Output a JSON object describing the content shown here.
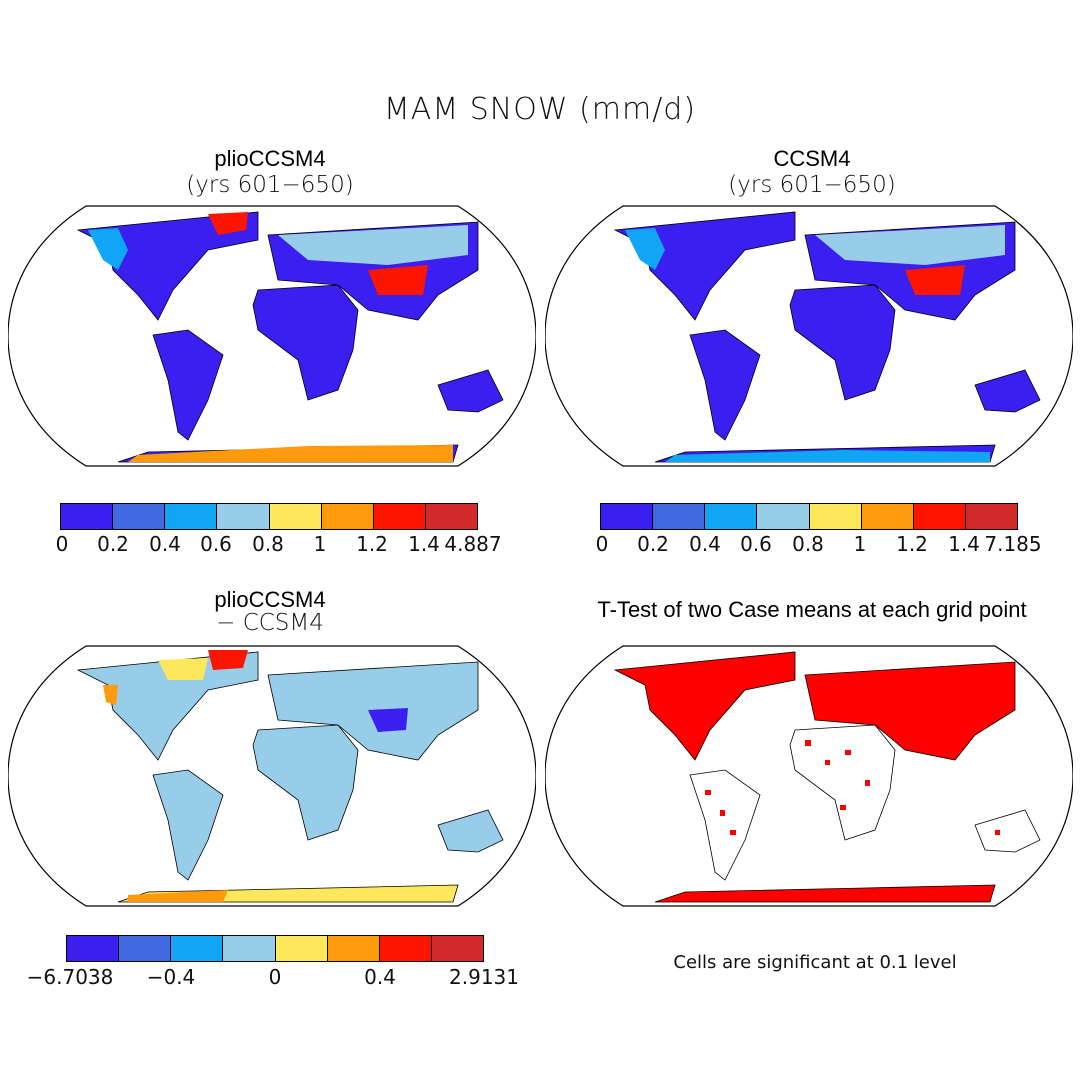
{
  "figure_title": "MAM SNOW (mm/d)",
  "colors": {
    "levels": [
      "#3a1ff0",
      "#4169e1",
      "#10a6f5",
      "#98cdea",
      "#fde85c",
      "#fe9a0c",
      "#fe1500",
      "#d22a2a"
    ],
    "ttest_fill": "#ff0000",
    "ocean": "#ffffff",
    "land_outline": "#000000"
  },
  "panels": [
    {
      "title": "plioCCSM4",
      "subtitle": "(yrs 601−650)",
      "colorbar_labels": [
        "0",
        "0.2",
        "0.4",
        "0.6",
        "0.8",
        "1",
        "1.2",
        "1.4",
        "4.887"
      ]
    },
    {
      "title": "CCSM4",
      "subtitle": "(yrs 601−650)",
      "colorbar_labels": [
        "0",
        "0.2",
        "0.4",
        "0.6",
        "0.8",
        "1",
        "1.2",
        "1.4",
        "7.185"
      ]
    },
    {
      "title": "plioCCSM4",
      "subtitle": "− CCSM4",
      "colorbar_labels": [
        "−6.7038",
        "−0.4",
        "0",
        "0.4",
        "2.9131"
      ]
    },
    {
      "title": "T-Test of two Case means at each grid point",
      "note": "Cells are significant at 0.1 level"
    }
  ],
  "map_data": {
    "projection": "Robinson",
    "variable": "MAM SNOW",
    "units": "mm/d",
    "difference_ticks": [
      "−6.7038",
      "−0.4",
      "0",
      "0.4",
      "2.9131"
    ],
    "significance_level": 0.1
  }
}
